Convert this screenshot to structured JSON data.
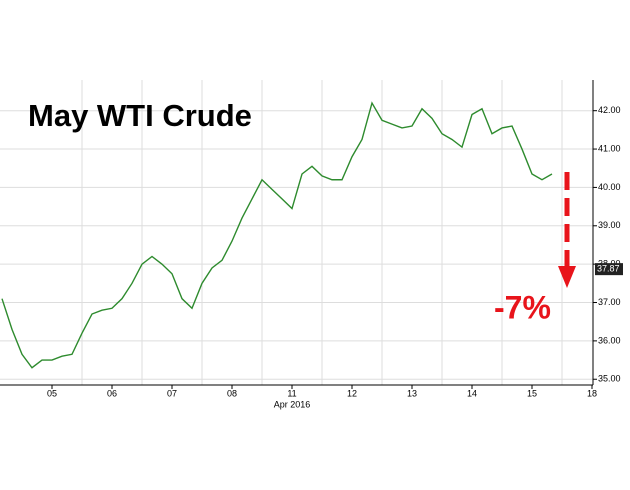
{
  "chart_data": {
    "type": "line",
    "title": "May WTI Crude",
    "annotation": "-7%",
    "x_label": "Apr 2016",
    "last_price": 37.87,
    "categories": [
      null,
      null,
      null,
      null,
      null,
      "05",
      null,
      null,
      null,
      null,
      null,
      "06",
      null,
      null,
      null,
      null,
      null,
      "07",
      null,
      null,
      null,
      null,
      null,
      "08",
      null,
      null,
      null,
      null,
      null,
      "11",
      null,
      null,
      null,
      null,
      null,
      "12",
      null,
      null,
      null,
      null,
      null,
      "13",
      null,
      null,
      null,
      null,
      null,
      "14",
      null,
      null,
      null,
      null,
      null,
      "15",
      null,
      null,
      null,
      null,
      null,
      "18"
    ],
    "series": [
      {
        "name": "May WTI Crude",
        "color": "#2e8b2e",
        "values": [
          37.1,
          36.3,
          35.65,
          35.3,
          35.5,
          35.5,
          35.6,
          35.65,
          36.2,
          36.7,
          36.8,
          36.85,
          37.1,
          37.5,
          38.0,
          38.2,
          38.0,
          37.75,
          37.1,
          36.85,
          37.5,
          37.9,
          38.1,
          38.6,
          39.2,
          39.7,
          40.2,
          39.95,
          39.7,
          39.45,
          40.35,
          40.55,
          40.3,
          40.2,
          40.2,
          40.8,
          41.25,
          42.2,
          41.75,
          41.65,
          41.55,
          41.6,
          42.05,
          41.8,
          41.4,
          41.25,
          41.05,
          41.9,
          42.05,
          41.4,
          41.55,
          41.6,
          41.0,
          40.35,
          40.2,
          40.35,
          null,
          null,
          null,
          null
        ]
      }
    ],
    "ylim": [
      34.85,
      42.8
    ],
    "yticks": [
      {
        "value": 35,
        "label": "35.00"
      },
      {
        "value": 36,
        "label": "36.00"
      },
      {
        "value": 37,
        "label": "37.00"
      },
      {
        "value": 38,
        "label": "38.00"
      },
      {
        "value": 39,
        "label": "39.00"
      },
      {
        "value": 40,
        "label": "40.00"
      },
      {
        "value": 41,
        "label": "41.00"
      },
      {
        "value": 42,
        "label": "42.00"
      }
    ],
    "grid": true
  }
}
